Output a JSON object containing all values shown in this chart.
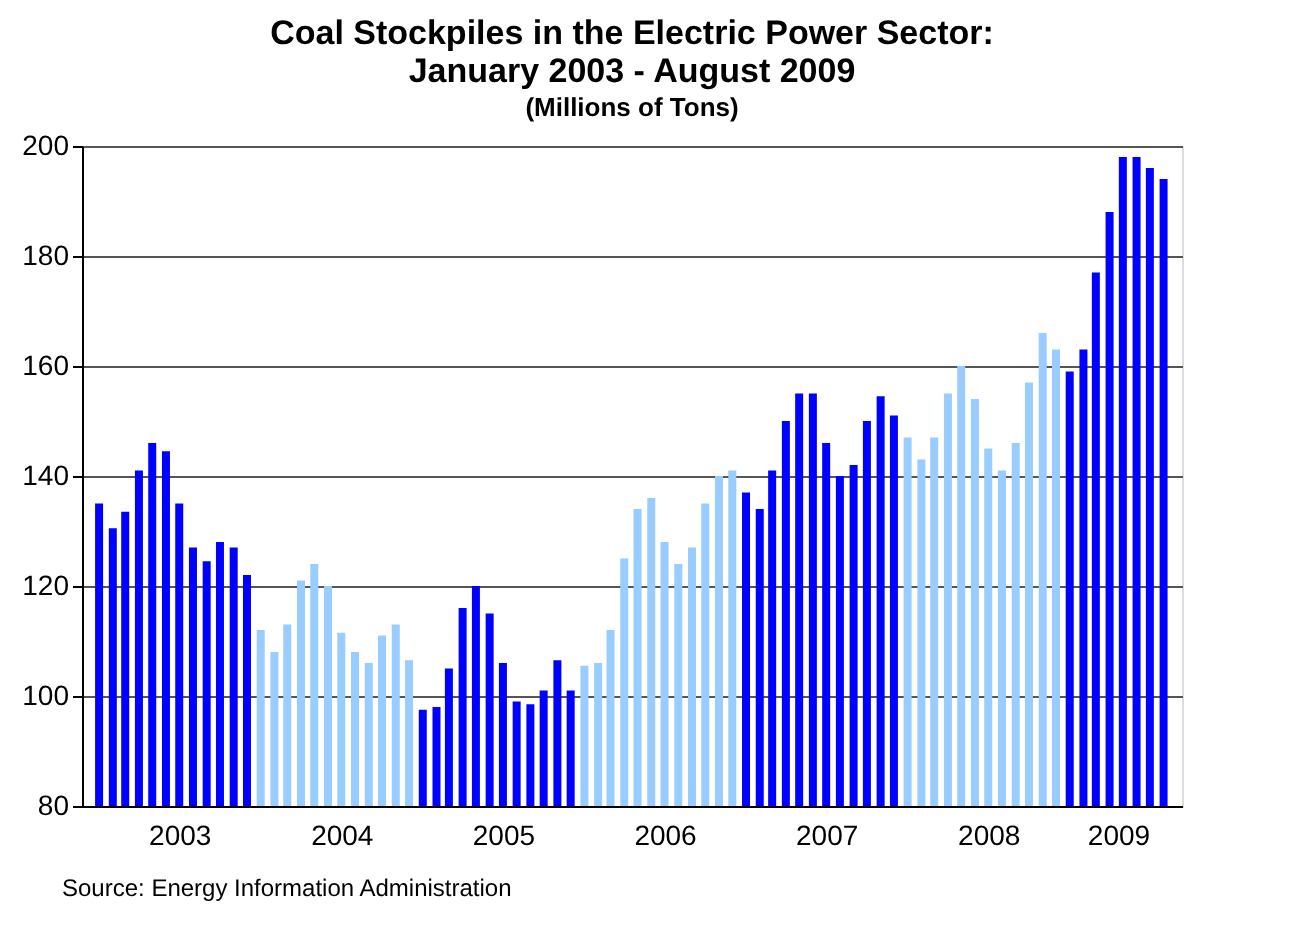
{
  "chart_data": {
    "type": "bar",
    "title": [
      "Coal Stockpiles in the Electric Power Sector:",
      "January 2003 - August 2009"
    ],
    "subtitle": "(Millions of Tons)",
    "x": [
      "2003-01",
      "2003-02",
      "2003-03",
      "2003-04",
      "2003-05",
      "2003-06",
      "2003-07",
      "2003-08",
      "2003-09",
      "2003-10",
      "2003-11",
      "2003-12",
      "2004-01",
      "2004-02",
      "2004-03",
      "2004-04",
      "2004-05",
      "2004-06",
      "2004-07",
      "2004-08",
      "2004-09",
      "2004-10",
      "2004-11",
      "2004-12",
      "2005-01",
      "2005-02",
      "2005-03",
      "2005-04",
      "2005-05",
      "2005-06",
      "2005-07",
      "2005-08",
      "2005-09",
      "2005-10",
      "2005-11",
      "2005-12",
      "2006-01",
      "2006-02",
      "2006-03",
      "2006-04",
      "2006-05",
      "2006-06",
      "2006-07",
      "2006-08",
      "2006-09",
      "2006-10",
      "2006-11",
      "2006-12",
      "2007-01",
      "2007-02",
      "2007-03",
      "2007-04",
      "2007-05",
      "2007-06",
      "2007-07",
      "2007-08",
      "2007-09",
      "2007-10",
      "2007-11",
      "2007-12",
      "2008-01",
      "2008-02",
      "2008-03",
      "2008-04",
      "2008-05",
      "2008-06",
      "2008-07",
      "2008-08",
      "2008-09",
      "2008-10",
      "2008-11",
      "2008-12",
      "2009-01",
      "2009-02",
      "2009-03",
      "2009-04",
      "2009-05",
      "2009-06",
      "2009-07",
      "2009-08"
    ],
    "values": [
      135,
      130.5,
      133.5,
      141,
      146,
      144.5,
      135,
      127,
      124.5,
      128,
      127,
      122,
      112,
      108,
      113,
      121,
      124,
      120,
      111.5,
      108,
      106,
      111,
      113,
      106.5,
      97.5,
      98,
      105,
      116,
      120,
      115,
      106,
      99,
      98.5,
      101,
      106.5,
      101,
      105.5,
      106,
      112,
      125,
      134,
      136,
      128,
      124,
      127,
      135,
      140,
      141,
      137,
      134,
      141,
      150,
      155,
      155,
      146,
      140,
      142,
      150,
      154.5,
      151,
      147,
      143,
      147,
      155,
      160,
      154,
      145,
      141,
      146,
      157,
      166,
      163,
      159,
      163,
      177,
      188,
      198,
      198,
      196,
      194
    ],
    "colors": [
      "#0000ff",
      "#0000ff",
      "#0000ff",
      "#0000ff",
      "#0000ff",
      "#0000ff",
      "#0000ff",
      "#0000ff",
      "#0000ff",
      "#0000ff",
      "#0000ff",
      "#0000ff",
      "#99ccff",
      "#99ccff",
      "#99ccff",
      "#99ccff",
      "#99ccff",
      "#99ccff",
      "#99ccff",
      "#99ccff",
      "#99ccff",
      "#99ccff",
      "#99ccff",
      "#99ccff",
      "#0000ff",
      "#0000ff",
      "#0000ff",
      "#0000ff",
      "#0000ff",
      "#0000ff",
      "#0000ff",
      "#0000ff",
      "#0000ff",
      "#0000ff",
      "#0000ff",
      "#0000ff",
      "#99ccff",
      "#99ccff",
      "#99ccff",
      "#99ccff",
      "#99ccff",
      "#99ccff",
      "#99ccff",
      "#99ccff",
      "#99ccff",
      "#99ccff",
      "#99ccff",
      "#99ccff",
      "#0000ff",
      "#0000ff",
      "#0000ff",
      "#0000ff",
      "#0000ff",
      "#0000ff",
      "#0000ff",
      "#0000ff",
      "#0000ff",
      "#0000ff",
      "#0000ff",
      "#0000ff",
      "#99ccff",
      "#99ccff",
      "#99ccff",
      "#99ccff",
      "#99ccff",
      "#99ccff",
      "#99ccff",
      "#99ccff",
      "#99ccff",
      "#99ccff",
      "#99ccff",
      "#99ccff",
      "#0000ff",
      "#0000ff",
      "#0000ff",
      "#0000ff",
      "#0000ff",
      "#0000ff",
      "#0000ff",
      "#0000ff"
    ],
    "xlim": [
      "2002-12-16",
      "2009-08-20"
    ],
    "xticks": [
      {
        "value": "2003-07-01",
        "label": "2003"
      },
      {
        "value": "2004-07-01",
        "label": "2004"
      },
      {
        "value": "2005-07-01",
        "label": "2005"
      },
      {
        "value": "2006-07-01",
        "label": "2006"
      },
      {
        "value": "2007-07-01",
        "label": "2007"
      },
      {
        "value": "2008-07-01",
        "label": "2008"
      },
      {
        "value": "2009-04-20",
        "label": "2009"
      }
    ],
    "ylim": [
      80,
      200
    ],
    "yticks": [
      80,
      100,
      120,
      140,
      160,
      180,
      200
    ],
    "grid": "y",
    "legend": false,
    "annotations": [
      "Source: Energy Information Administration"
    ]
  }
}
